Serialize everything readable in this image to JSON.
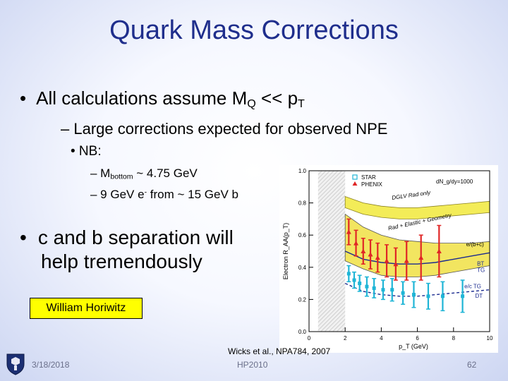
{
  "title": "Quark Mass Corrections",
  "bullets": {
    "b1_pre": "All calculations assume M",
    "b1_sub1": "Q",
    "b1_mid": " << p",
    "b1_sub2": "T",
    "s1": "– Large corrections expected for observed NPE",
    "s2": "• NB:",
    "s3_pre": "– M",
    "s3_sub": "bottom",
    "s3_post": " ~ 4.75 GeV",
    "s4_pre": "– 9 GeV e",
    "s4_sup": "-",
    "s4_post": " from ~ 15 GeV b",
    "b2_line1": "c and b separation will",
    "b2_line2": "help tremendously"
  },
  "tag": "William Horiwitz",
  "citation": "Wicks et al., NPA784, 2007",
  "footer": {
    "date": "3/18/2018",
    "conference": "HP2010",
    "page": "62"
  },
  "chart_data": {
    "type": "line",
    "xlabel": "p_T (GeV)",
    "ylabel": "Electron R_AA(p_T)",
    "xlim": [
      0,
      10
    ],
    "ylim": [
      0,
      1.0
    ],
    "x_ticks": [
      "0",
      "2",
      "4",
      "6",
      "8",
      "10"
    ],
    "y_ticks": [
      "0.0",
      "0.2",
      "0.4",
      "0.6",
      "0.8",
      "1.0"
    ],
    "top_right_label": "dN_g/dy=1000",
    "legend": [
      "STAR",
      "PHENIX"
    ],
    "band_labels": {
      "dclv": "DGLV Rad only",
      "rad_el_geo": "Rad + Elastic + Geometry",
      "ebc": "e/(b+c)",
      "bt": "BT",
      "tg": "TG",
      "ec_tg": "e/c  TG",
      "dt": "DT"
    },
    "series": [
      {
        "name": "DGLV Rad only",
        "x": [
          2,
          3,
          4,
          5,
          6,
          7,
          8,
          9,
          10
        ],
        "lower": [
          0.77,
          0.73,
          0.71,
          0.7,
          0.7,
          0.71,
          0.72,
          0.73,
          0.74
        ],
        "upper": [
          0.84,
          0.8,
          0.78,
          0.77,
          0.77,
          0.78,
          0.79,
          0.8,
          0.81
        ]
      },
      {
        "name": "Rad + Elastic + Geometry",
        "x": [
          2,
          3,
          4,
          5,
          6,
          7,
          8,
          9,
          10
        ],
        "lower": [
          0.44,
          0.39,
          0.35,
          0.34,
          0.34,
          0.35,
          0.37,
          0.39,
          0.41
        ],
        "upper": [
          0.73,
          0.65,
          0.6,
          0.57,
          0.56,
          0.55,
          0.55,
          0.55,
          0.56
        ]
      },
      {
        "name": "e/(b+c)",
        "x": [
          2,
          3,
          4,
          5,
          6,
          7,
          8,
          9,
          10
        ],
        "y": [
          0.5,
          0.45,
          0.43,
          0.42,
          0.42,
          0.43,
          0.45,
          0.47,
          0.49
        ]
      },
      {
        "name": "e/c",
        "x": [
          2,
          3,
          4,
          5,
          6,
          7,
          8,
          9,
          10
        ],
        "y": [
          0.3,
          0.25,
          0.23,
          0.22,
          0.22,
          0.23,
          0.24,
          0.25,
          0.26
        ]
      },
      {
        "name": "STAR",
        "x": [
          2.2,
          2.6,
          3.0,
          3.4,
          3.8,
          4.3,
          4.8,
          5.4,
          6.2,
          7.2
        ],
        "y": [
          0.62,
          0.55,
          0.5,
          0.48,
          0.46,
          0.44,
          0.42,
          0.44,
          0.46,
          0.5
        ],
        "err": [
          0.08,
          0.08,
          0.08,
          0.09,
          0.09,
          0.1,
          0.1,
          0.12,
          0.14,
          0.16
        ]
      },
      {
        "name": "PHENIX",
        "x": [
          2.2,
          2.5,
          2.8,
          3.2,
          3.6,
          4.1,
          4.6,
          5.2,
          5.8,
          6.6,
          7.4,
          8.5
        ],
        "y": [
          0.36,
          0.32,
          0.3,
          0.28,
          0.27,
          0.26,
          0.26,
          0.24,
          0.23,
          0.22,
          0.22,
          0.22
        ],
        "err": [
          0.05,
          0.05,
          0.05,
          0.06,
          0.06,
          0.06,
          0.07,
          0.07,
          0.08,
          0.08,
          0.09,
          0.1
        ]
      }
    ]
  }
}
